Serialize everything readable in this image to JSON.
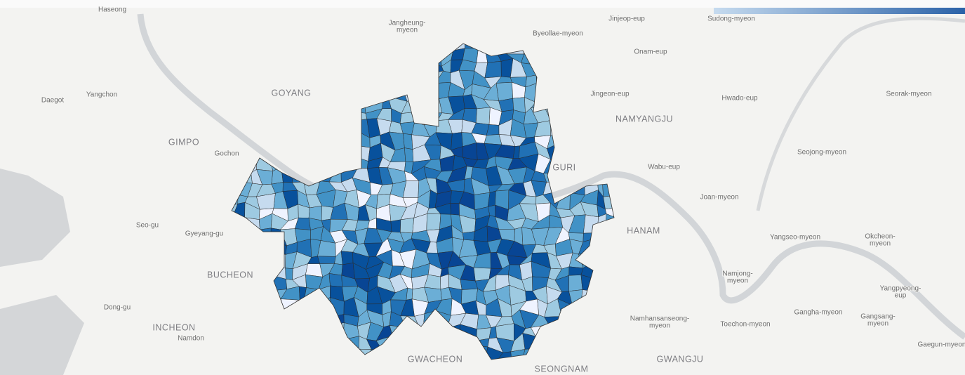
{
  "labels": [
    "Haseong",
    [
      "Jangheung-",
      "myeon"
    ],
    "Byeollae-myeon",
    "Jinjeop-eup",
    "Sudong-myeon",
    "Onam-eup",
    "Daegot",
    "Yangchon",
    "GOYANG",
    "Jingeon-eup",
    "Hwado-eup",
    "Seorak-myeon",
    "NAMYANGJU",
    "GIMPO",
    "Gochon",
    "Seojong-myeon",
    "GURI",
    "Wabu-eup",
    "Joan-myeon",
    "Seo-gu",
    "Gyeyang-gu",
    "HANAM",
    "Yangseo-myeon",
    [
      "Okcheon-",
      "myeon"
    ],
    "BUCHEON",
    [
      "Namjong-",
      "myeon"
    ],
    [
      "Yangpyeong-",
      "eup"
    ],
    "Dong-gu",
    "Gangha-myeon",
    [
      "Namhansanseong-",
      "myeon"
    ],
    "Toechon-myeon",
    [
      "Gangsang-",
      "myeon"
    ],
    "INCHEON",
    "Namdon",
    "Gaegun-myeon",
    "GWACHEON",
    "SEONGNAM",
    "GWANGJU"
  ]
}
